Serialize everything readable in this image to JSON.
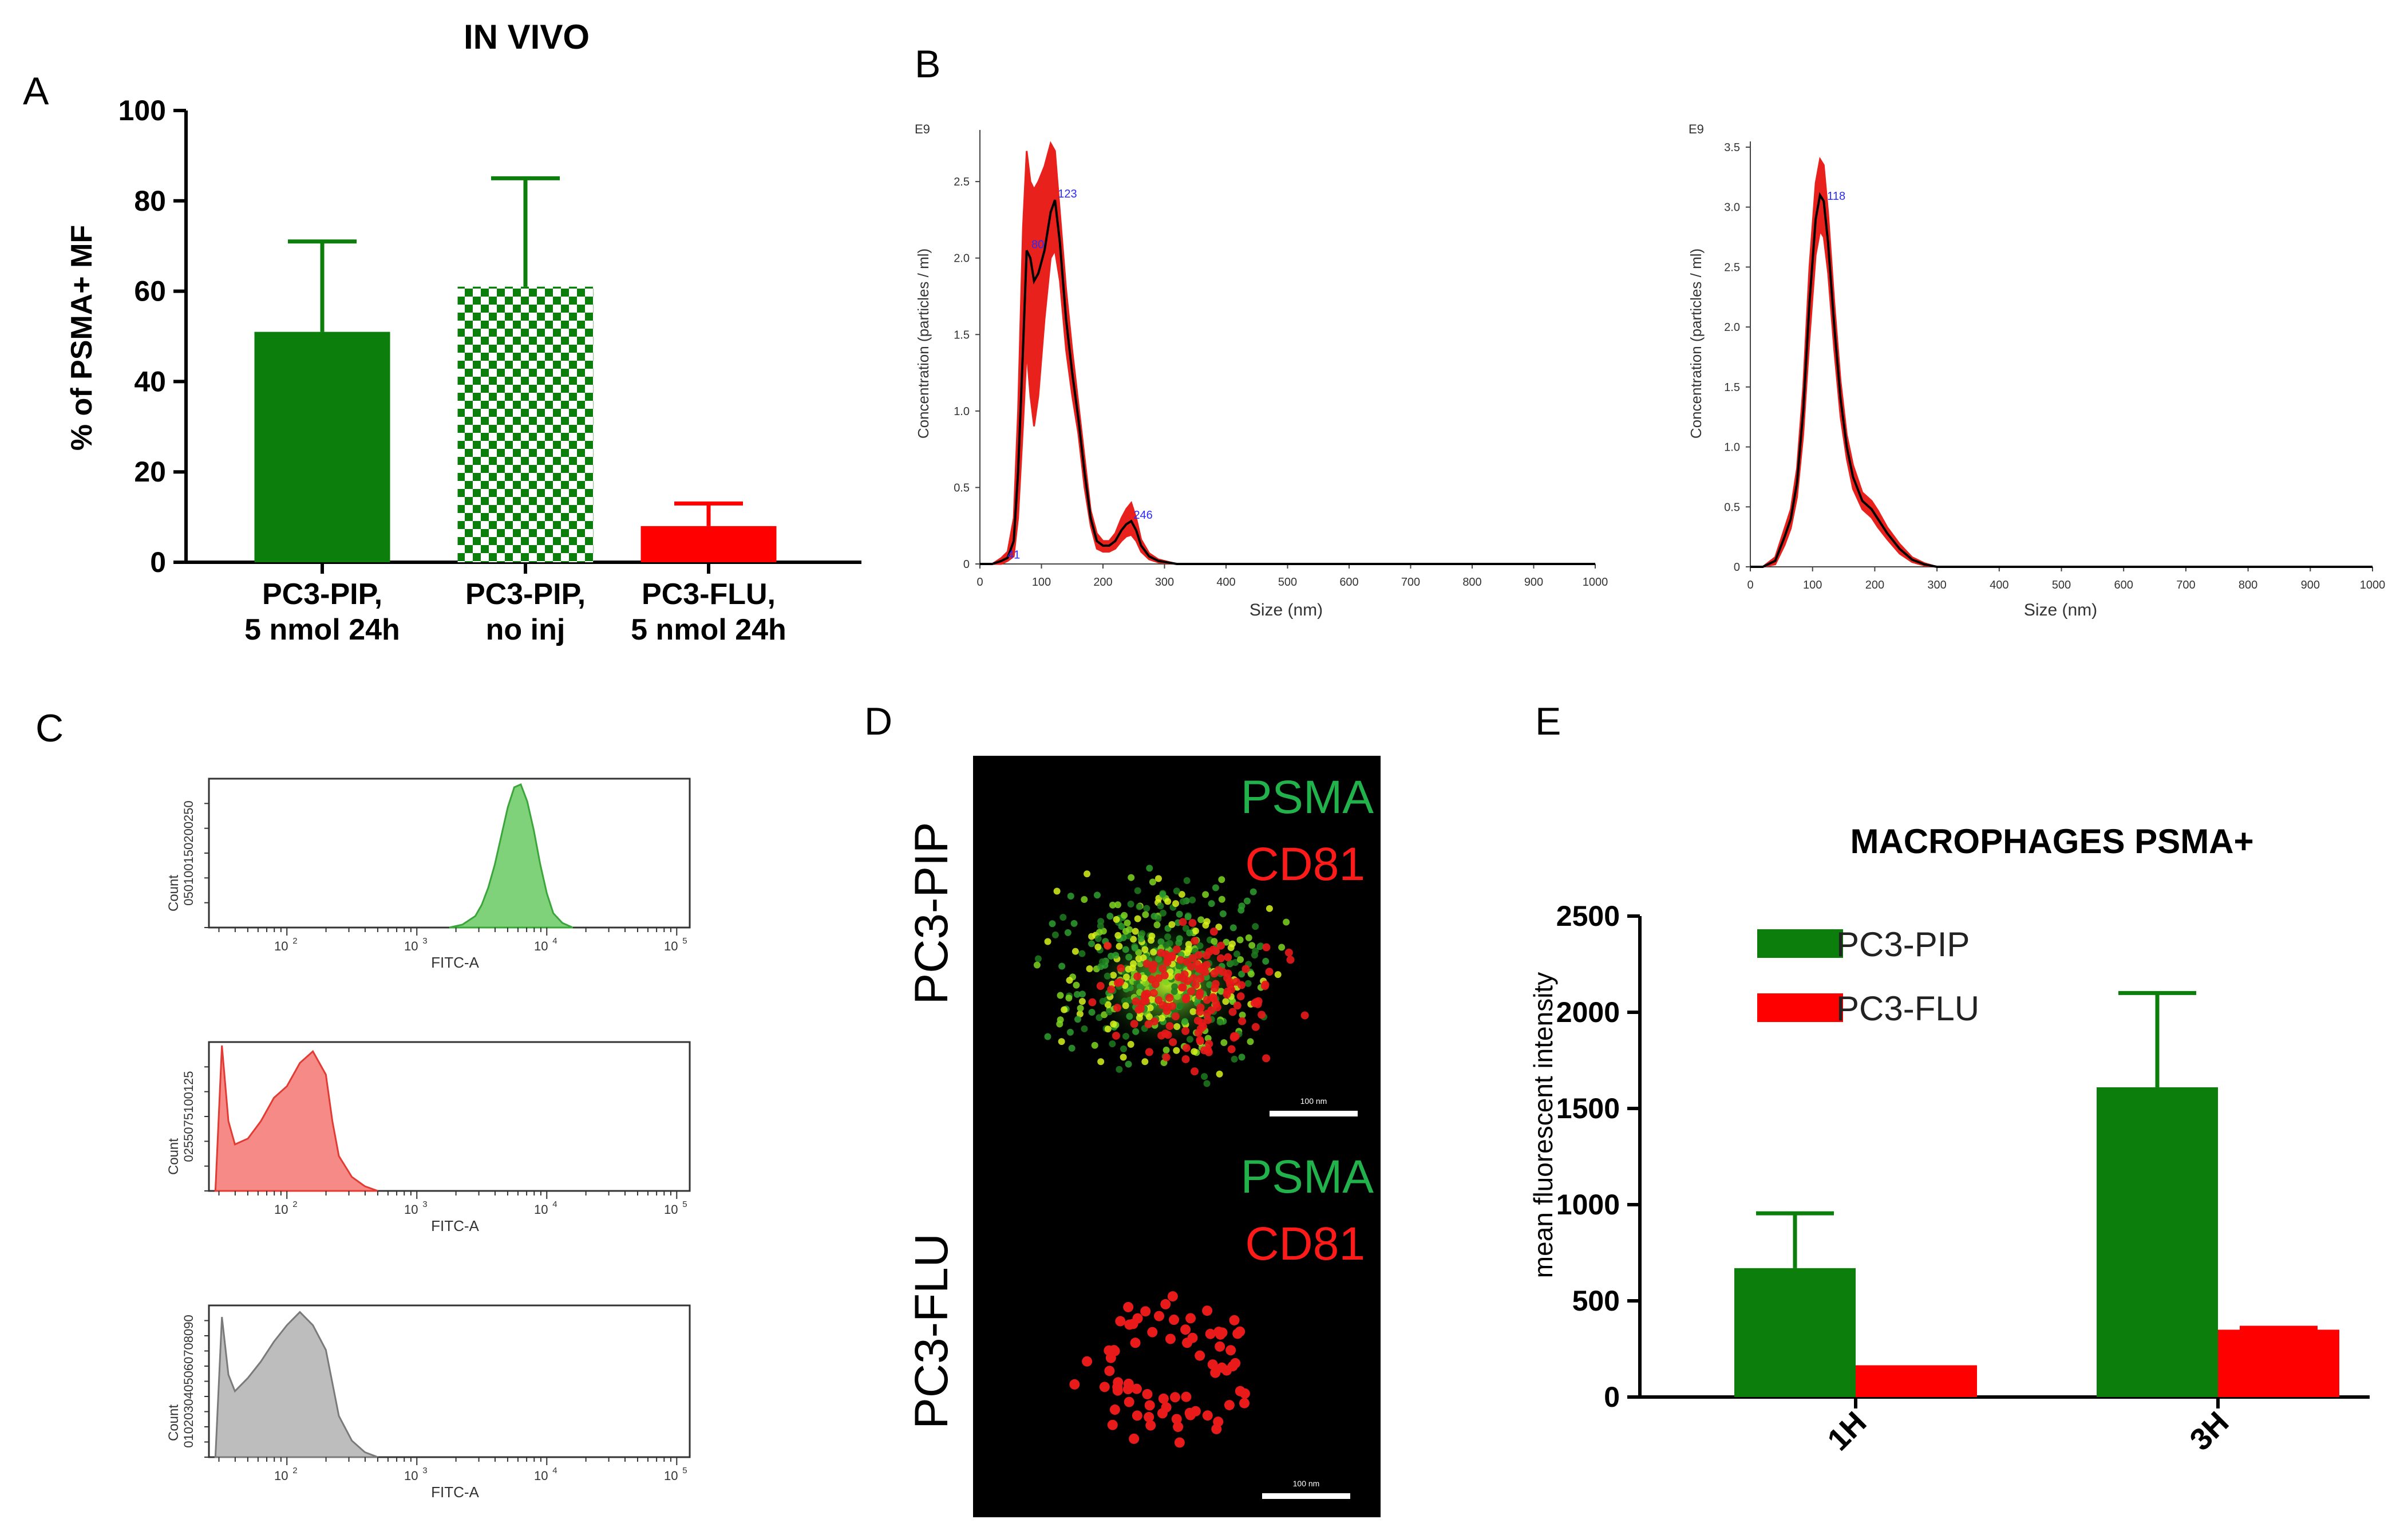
{
  "panels": {
    "A": {
      "letter": "A"
    },
    "B": {
      "letter": "B"
    },
    "C": {
      "letter": "C"
    },
    "D": {
      "letter": "D"
    },
    "E": {
      "letter": "E"
    }
  },
  "colors": {
    "green": "#0b7e0b",
    "red": "#ff0000",
    "nta_red": "#e8211c",
    "hist_green": "#7fd27a",
    "hist_red": "#f58a86",
    "hist_gray": "#bdbdbd"
  },
  "chart_data": [
    {
      "panel": "A",
      "type": "bar",
      "title": "IN VIVO",
      "ylabel": "% of PSMA+ MF",
      "ylim": [
        0,
        100
      ],
      "yticks": [
        "0",
        "20",
        "40",
        "60",
        "80",
        "100"
      ],
      "categories": [
        "PC3-PIP,\n5 nmol 24h",
        "PC3-PIP,\nno inj",
        "PC3-FLU,\n5 nmol 24h"
      ],
      "category_lines": [
        [
          "PC3-PIP,",
          "5 nmol 24h"
        ],
        [
          "PC3-PIP,",
          "no inj"
        ],
        [
          "PC3-FLU,",
          "5 nmol 24h"
        ]
      ],
      "values": [
        51,
        61,
        8
      ],
      "errors": [
        20,
        24,
        5
      ],
      "fills": [
        "solid-green",
        "checker-green",
        "solid-red"
      ]
    },
    {
      "panel": "B-left",
      "type": "line",
      "ylabel": "Concentration (particles / ml)",
      "xlabel": "Size (nm)",
      "exponent_label": "E9",
      "xlim": [
        0,
        1000
      ],
      "ylim": [
        0,
        2.8
      ],
      "xticks": [
        "0",
        "100",
        "200",
        "300",
        "400",
        "500",
        "600",
        "700",
        "800",
        "900",
        "1000"
      ],
      "yticks": [
        "0",
        "0.5",
        "1.0",
        "1.5",
        "2.0",
        "2.5"
      ],
      "peak_labels": [
        "41",
        "80",
        "123",
        "246"
      ],
      "x": [
        0,
        20,
        35,
        45,
        55,
        62,
        70,
        76,
        82,
        88,
        95,
        105,
        115,
        122,
        130,
        140,
        150,
        160,
        170,
        180,
        190,
        200,
        210,
        220,
        230,
        238,
        246,
        254,
        262,
        275,
        290,
        320,
        360,
        400,
        500,
        600,
        700,
        800,
        900,
        1000
      ],
      "mean": [
        0,
        0,
        0.02,
        0.04,
        0.15,
        0.6,
        1.4,
        2.05,
        2.0,
        1.85,
        1.9,
        2.05,
        2.3,
        2.38,
        2.1,
        1.6,
        1.25,
        0.95,
        0.6,
        0.3,
        0.15,
        0.12,
        0.12,
        0.15,
        0.22,
        0.26,
        0.28,
        0.22,
        0.12,
        0.05,
        0.02,
        0.0,
        0.0,
        0.0,
        0.0,
        0.0,
        0.0,
        0.0,
        0.0,
        0.0
      ],
      "upper": [
        0,
        0,
        0.04,
        0.08,
        0.3,
        1.0,
        2.2,
        2.7,
        2.5,
        2.45,
        2.5,
        2.6,
        2.75,
        2.7,
        2.3,
        1.8,
        1.4,
        1.05,
        0.7,
        0.35,
        0.2,
        0.15,
        0.15,
        0.2,
        0.3,
        0.36,
        0.4,
        0.3,
        0.16,
        0.07,
        0.03,
        0.0,
        0.0,
        0.0,
        0.0,
        0.0,
        0.0,
        0.0,
        0.0,
        0.0
      ],
      "lower": [
        0,
        0,
        0.0,
        0.02,
        0.05,
        0.3,
        0.9,
        1.4,
        1.1,
        0.9,
        1.1,
        1.6,
        2.0,
        2.05,
        1.85,
        1.4,
        1.1,
        0.85,
        0.5,
        0.25,
        0.1,
        0.08,
        0.08,
        0.1,
        0.15,
        0.18,
        0.19,
        0.15,
        0.08,
        0.03,
        0.01,
        0.0,
        0.0,
        0.0,
        0.0,
        0.0,
        0.0,
        0.0,
        0.0,
        0.0
      ]
    },
    {
      "panel": "B-right",
      "type": "line",
      "ylabel": "Concentration (particles / ml)",
      "xlabel": "Size (nm)",
      "exponent_label": "E9",
      "xlim": [
        0,
        1000
      ],
      "ylim": [
        0,
        3.5
      ],
      "xticks": [
        "0",
        "100",
        "200",
        "300",
        "400",
        "500",
        "600",
        "700",
        "800",
        "900",
        "1000"
      ],
      "yticks": [
        "0",
        "0.5",
        "1.0",
        "1.5",
        "2.0",
        "2.5",
        "3.0",
        "3.5"
      ],
      "peak_labels": [
        "118"
      ],
      "x": [
        0,
        20,
        40,
        55,
        65,
        75,
        85,
        95,
        105,
        112,
        118,
        125,
        135,
        145,
        155,
        165,
        180,
        195,
        205,
        220,
        240,
        260,
        280,
        300,
        350,
        400,
        500,
        600,
        700,
        800,
        900,
        1000
      ],
      "mean": [
        0,
        0,
        0.05,
        0.25,
        0.4,
        0.7,
        1.3,
        2.2,
        2.9,
        3.1,
        3.05,
        2.7,
        2.0,
        1.4,
        1.0,
        0.75,
        0.55,
        0.48,
        0.4,
        0.28,
        0.15,
        0.06,
        0.02,
        0.0,
        0.0,
        0.0,
        0.0,
        0.0,
        0.0,
        0.0,
        0.0,
        0.0
      ],
      "upper": [
        0,
        0,
        0.08,
        0.32,
        0.48,
        0.82,
        1.5,
        2.5,
        3.2,
        3.4,
        3.35,
        2.95,
        2.2,
        1.55,
        1.1,
        0.85,
        0.62,
        0.55,
        0.47,
        0.33,
        0.19,
        0.08,
        0.03,
        0.0,
        0.0,
        0.0,
        0.0,
        0.0,
        0.0,
        0.0,
        0.0,
        0.0
      ],
      "lower": [
        0,
        0,
        0.02,
        0.18,
        0.32,
        0.58,
        1.1,
        1.9,
        2.6,
        2.8,
        2.75,
        2.45,
        1.8,
        1.25,
        0.9,
        0.65,
        0.48,
        0.41,
        0.33,
        0.23,
        0.11,
        0.04,
        0.01,
        0.0,
        0.0,
        0.0,
        0.0,
        0.0,
        0.0,
        0.0,
        0.0,
        0.0
      ]
    },
    {
      "panel": "C",
      "type": "area",
      "note_xaxis": "log",
      "histograms": [
        {
          "ylabel": "Count",
          "xlabel": "FITC-A",
          "yticks": [
            "0",
            "50",
            "100",
            "150",
            "200",
            "250"
          ],
          "ymax": 260,
          "color": "green",
          "log_x": [
            3.25,
            3.35,
            3.45,
            3.5,
            3.55,
            3.6,
            3.65,
            3.7,
            3.75,
            3.8,
            3.85,
            3.9,
            3.95,
            4.0,
            4.05,
            4.12,
            4.2
          ],
          "counts": [
            0,
            5,
            20,
            40,
            70,
            110,
            160,
            210,
            245,
            250,
            220,
            170,
            110,
            60,
            25,
            8,
            0
          ]
        },
        {
          "ylabel": "Count",
          "xlabel": "FITC-A",
          "yticks": [
            "0",
            "25",
            "50",
            "75",
            "100",
            "125"
          ],
          "ymax": 128,
          "color": "red",
          "log_x": [
            1.45,
            1.5,
            1.55,
            1.6,
            1.7,
            1.8,
            1.9,
            2.0,
            2.1,
            2.2,
            2.3,
            2.35,
            2.4,
            2.5,
            2.6,
            2.7
          ],
          "counts": [
            0,
            125,
            60,
            40,
            45,
            60,
            80,
            90,
            110,
            120,
            100,
            60,
            30,
            12,
            4,
            0
          ]
        },
        {
          "ylabel": "Count",
          "xlabel": "FITC-A",
          "yticks": [
            "0",
            "10",
            "20",
            "30",
            "40",
            "50",
            "60",
            "70",
            "80",
            "90"
          ],
          "ymax": 92,
          "color": "gray",
          "log_x": [
            1.45,
            1.5,
            1.55,
            1.6,
            1.7,
            1.8,
            1.9,
            2.0,
            2.1,
            2.2,
            2.3,
            2.35,
            2.4,
            2.5,
            2.6,
            2.7
          ],
          "counts": [
            0,
            85,
            50,
            40,
            48,
            58,
            70,
            80,
            88,
            80,
            65,
            45,
            25,
            10,
            3,
            0
          ]
        }
      ],
      "xtick_labels": [
        "10",
        "10",
        "10",
        "10"
      ],
      "xtick_exponents": [
        "2",
        "3",
        "4",
        "5"
      ]
    },
    {
      "panel": "E",
      "type": "bar",
      "title": "MACROPHAGES PSMA+",
      "ylabel": "mean fluorescent intensity",
      "ylim": [
        0,
        2500
      ],
      "yticks": [
        "0",
        "500",
        "1000",
        "1500",
        "2000",
        "2500"
      ],
      "categories": [
        "1H",
        "3H"
      ],
      "series": [
        {
          "name": "PC3-PIP",
          "values": [
            670,
            1610
          ],
          "errors": [
            285,
            490
          ],
          "color": "green"
        },
        {
          "name": "PC3-FLU",
          "values": [
            165,
            350
          ],
          "errors": [
            0,
            10
          ],
          "color": "red"
        }
      ]
    }
  ],
  "microscopy": {
    "top_row_label": "PC3-PIP",
    "bottom_row_label": "PC3-FLU",
    "channel_1": "PSMA",
    "channel_2": "CD81",
    "scalebar_label": "100 nm"
  }
}
